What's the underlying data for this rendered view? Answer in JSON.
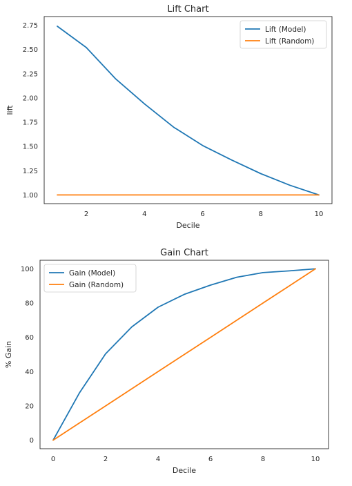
{
  "chart_data": [
    {
      "type": "line",
      "title": "Lift Chart",
      "xlabel": "Decile",
      "ylabel": "lift",
      "xlim": [
        0.55,
        10.45
      ],
      "ylim": [
        0.91,
        2.84
      ],
      "xticks": [
        2,
        4,
        6,
        8,
        10
      ],
      "yticks": [
        1.0,
        1.25,
        1.5,
        1.75,
        2.0,
        2.25,
        2.5,
        2.75
      ],
      "ytick_labels": [
        "1.00",
        "1.25",
        "1.50",
        "1.75",
        "2.00",
        "2.25",
        "2.50",
        "2.75"
      ],
      "grid": false,
      "legend": "upper right",
      "x": [
        1,
        2,
        3,
        4,
        5,
        6,
        7,
        8,
        9,
        10
      ],
      "series": [
        {
          "name": "Lift (Model)",
          "color": "#1f77b4",
          "values": [
            2.74,
            2.52,
            2.2,
            1.94,
            1.7,
            1.51,
            1.36,
            1.22,
            1.1,
            1.0
          ]
        },
        {
          "name": "Lift (Random)",
          "color": "#ff7f0e",
          "values": [
            1.0,
            1.0,
            1.0,
            1.0,
            1.0,
            1.0,
            1.0,
            1.0,
            1.0,
            1.0
          ]
        }
      ]
    },
    {
      "type": "line",
      "title": "Gain Chart",
      "xlabel": "Decile",
      "ylabel": "% Gain",
      "xlim": [
        -0.5,
        10.5
      ],
      "ylim": [
        -5,
        105
      ],
      "xticks": [
        0,
        2,
        4,
        6,
        8,
        10
      ],
      "yticks": [
        0,
        20,
        40,
        60,
        80,
        100
      ],
      "ytick_labels": [
        "0",
        "20",
        "40",
        "60",
        "80",
        "100"
      ],
      "grid": false,
      "legend": "upper left",
      "x": [
        0,
        1,
        2,
        3,
        4,
        5,
        6,
        7,
        8,
        9,
        10
      ],
      "series": [
        {
          "name": "Gain (Model)",
          "color": "#1f77b4",
          "values": [
            0,
            27.5,
            50.4,
            66.1,
            77.6,
            85.1,
            90.5,
            95.1,
            97.8,
            98.8,
            100
          ]
        },
        {
          "name": "Gain (Random)",
          "color": "#ff7f0e",
          "values": [
            0,
            10,
            20,
            30,
            40,
            50,
            60,
            70,
            80,
            90,
            100
          ]
        }
      ]
    }
  ]
}
